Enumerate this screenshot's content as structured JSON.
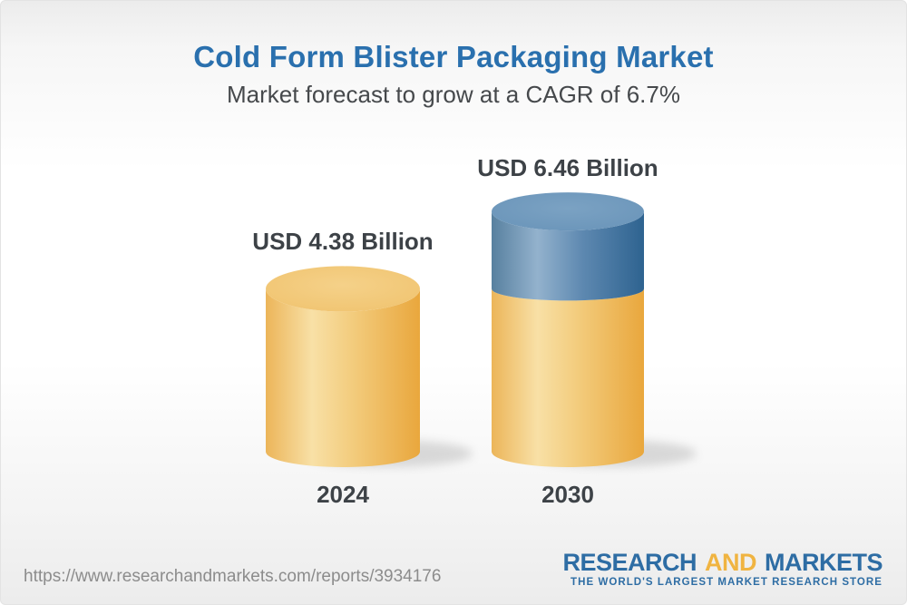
{
  "header": {
    "title": "Cold Form Blister Packaging Market",
    "subtitle": "Market forecast to grow at a CAGR of 6.7%"
  },
  "chart_data": {
    "type": "bar",
    "variant": "3d-cylinder",
    "title": "Cold Form Blister Packaging Market",
    "subtitle": "Market forecast to grow at a CAGR of 6.7%",
    "categories": [
      "2024",
      "2030"
    ],
    "values": [
      4.38,
      6.46
    ],
    "value_labels": [
      "USD 4.38 Billion",
      "USD 6.46 Billion"
    ],
    "unit": "USD Billion",
    "cagr_pct": 6.7,
    "legend": "none",
    "grid": "off",
    "colors": {
      "base_segment": "#f0bc5e",
      "growth_segment": "#4c7ca8"
    },
    "notes": "2030 cylinder shows the 2024 base value in yellow with the incremental growth segment in blue stacked on top"
  },
  "bars": [
    {
      "year": "2024",
      "value_label": "USD 4.38 Billion"
    },
    {
      "year": "2030",
      "value_label": "USD 6.46 Billion"
    }
  ],
  "footer": {
    "url": "https://www.researchandmarkets.com/reports/3934176",
    "logo": {
      "part1": "RESEARCH",
      "and": "AND",
      "part2": "MARKETS",
      "tagline": "THE WORLD'S LARGEST MARKET RESEARCH STORE"
    }
  },
  "colors": {
    "title_blue": "#2a70ae",
    "subtitle_gray": "#46494c",
    "label_dark": "#3d4247",
    "url_gray": "#8c8c8c",
    "logo_blue": "#2e6da4",
    "logo_gold": "#f0b441"
  }
}
